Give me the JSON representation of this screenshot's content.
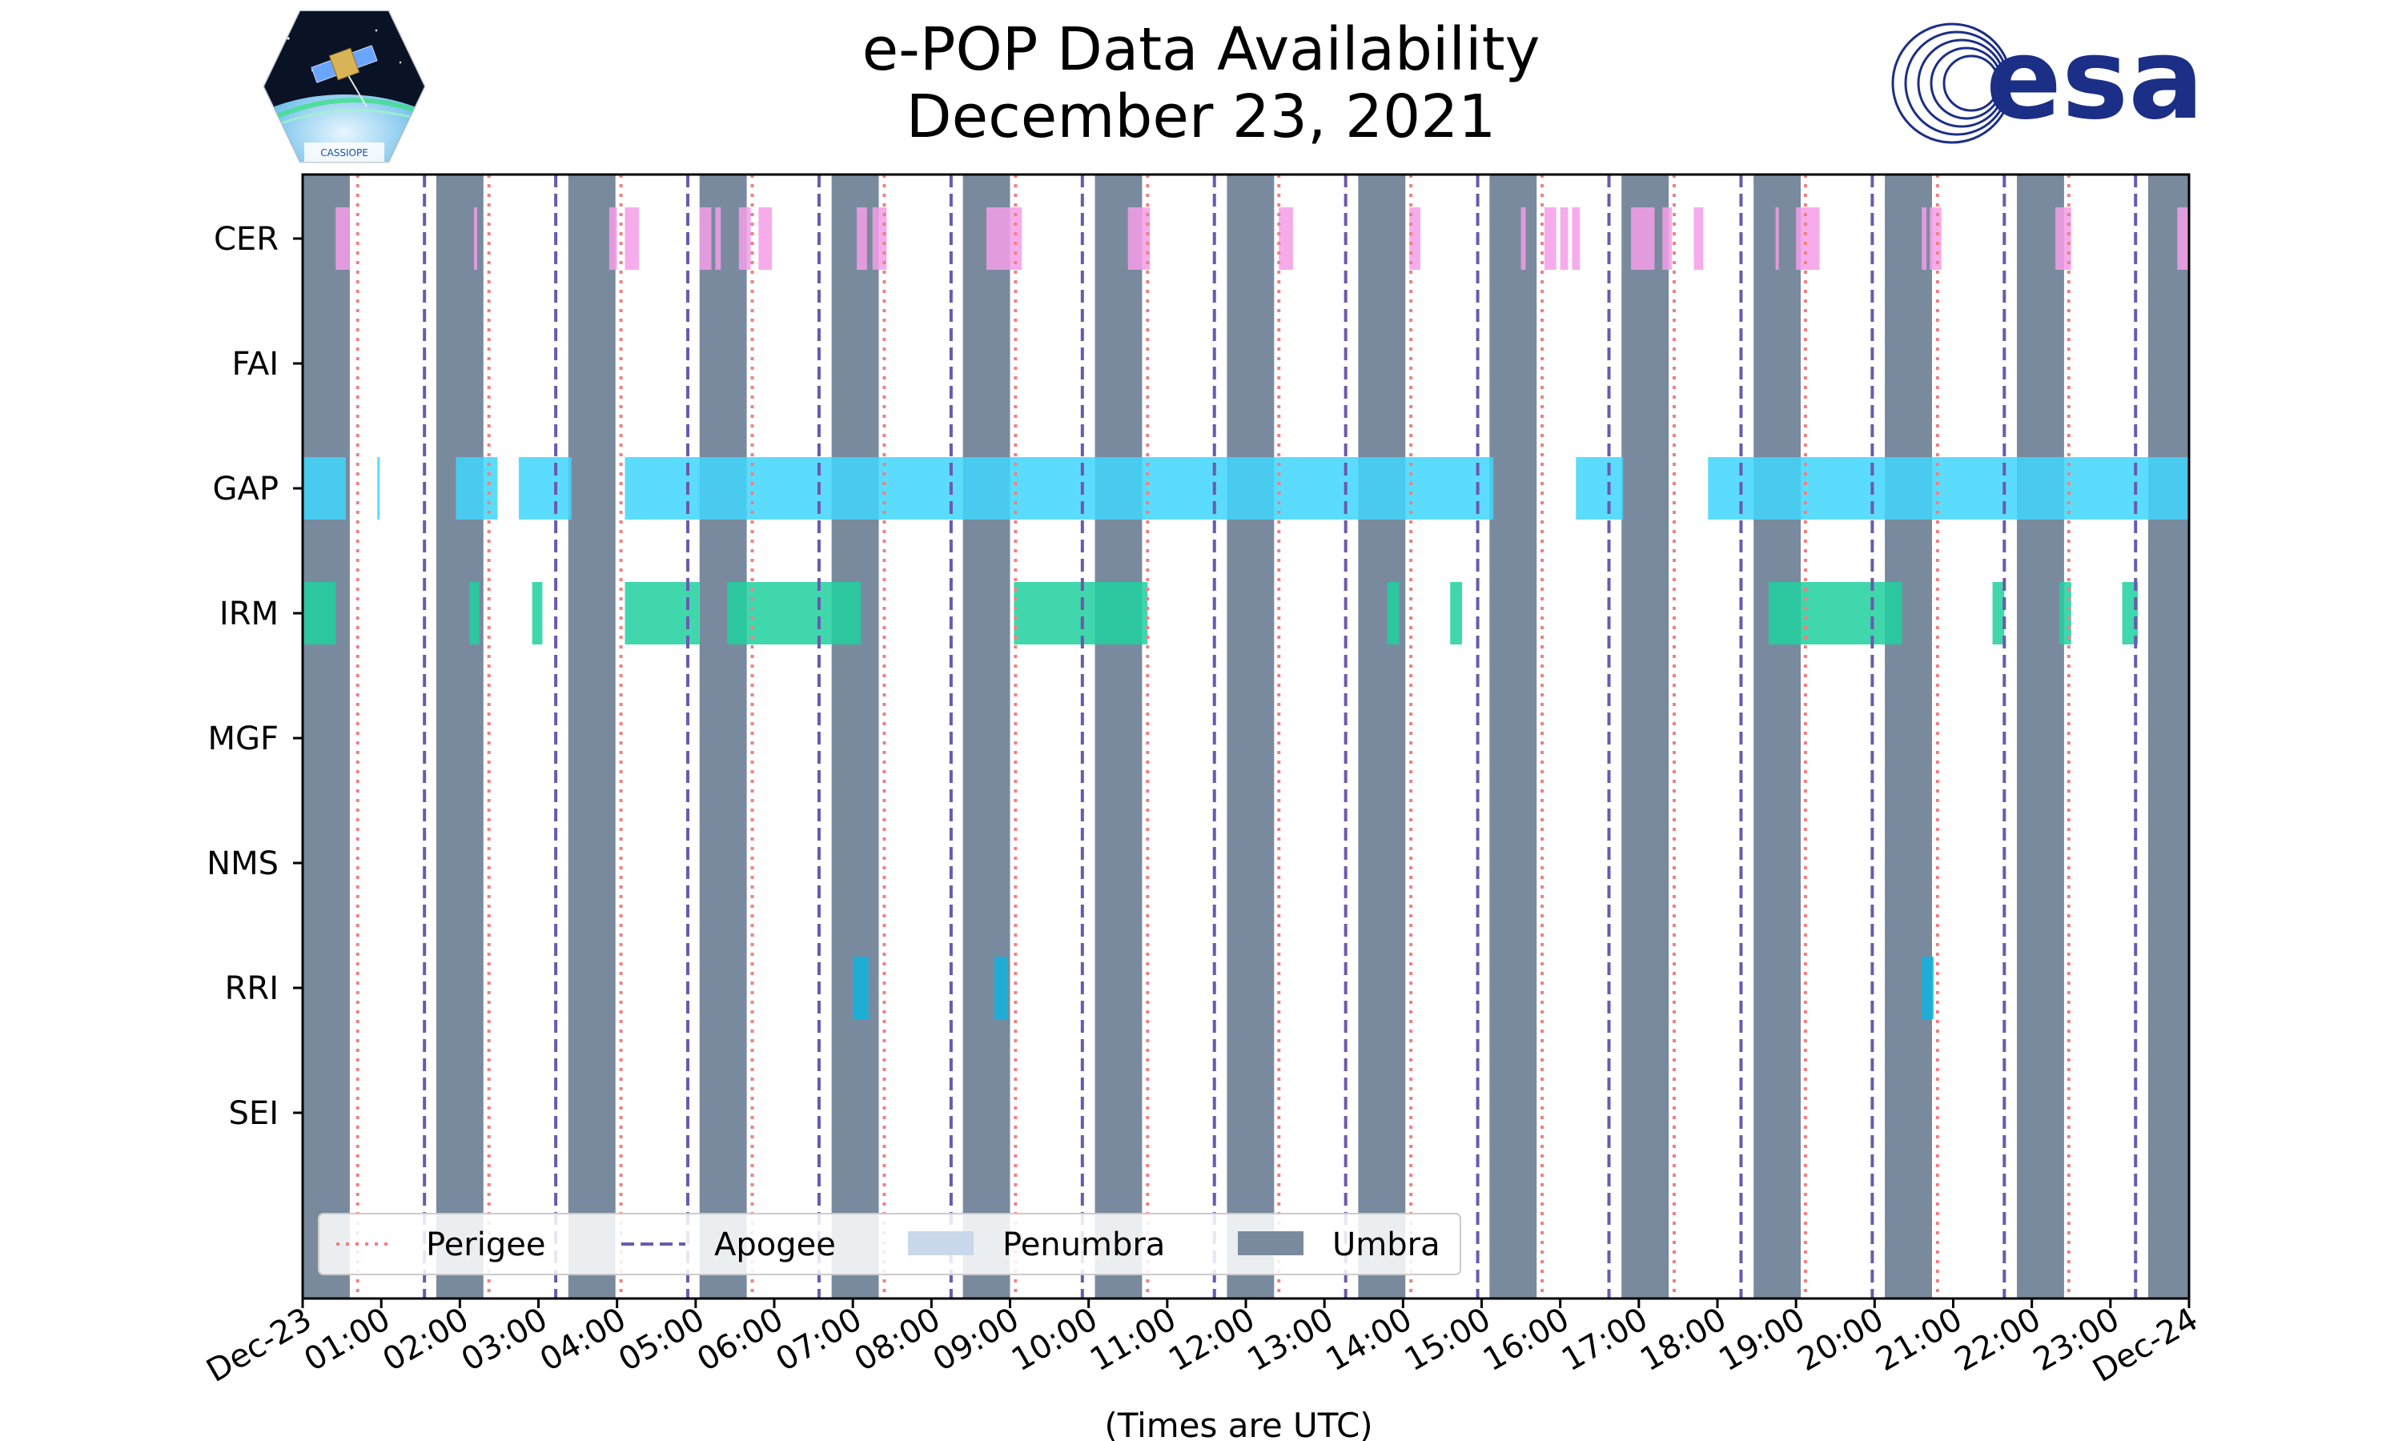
{
  "title_line1": "e-POP Data Availability",
  "title_line2": "December 23, 2021",
  "logo_left_text": "CASSIOPE",
  "logo_right_text": "esa",
  "chart_data": {
    "type": "timeline",
    "title": "e-POP Data Availability December 23, 2021",
    "xlabel": "(Times are UTC)",
    "x_unit": "hours UTC",
    "xlim": [
      0,
      24
    ],
    "tick_labels": [
      "Dec-23",
      "01:00",
      "02:00",
      "03:00",
      "04:00",
      "05:00",
      "06:00",
      "07:00",
      "08:00",
      "09:00",
      "10:00",
      "11:00",
      "12:00",
      "13:00",
      "14:00",
      "15:00",
      "16:00",
      "17:00",
      "18:00",
      "19:00",
      "20:00",
      "21:00",
      "22:00",
      "23:00",
      "Dec-24"
    ],
    "instruments": [
      "CER",
      "FAI",
      "GAP",
      "IRM",
      "MGF",
      "NMS",
      "RRI",
      "SEI"
    ],
    "colors": {
      "CER": "#f59ee8",
      "GAP": "#3fd6fb",
      "IRM": "#1fd09f",
      "RRI": "#10b3de",
      "perigee": "#f08080",
      "apogee": "#6a5aad",
      "penumbra": "#c9d8ea",
      "umbra": "#7a8a9e"
    },
    "umbra": [
      [
        0,
        0.6
      ],
      [
        1.7,
        2.3
      ],
      [
        3.38,
        3.98
      ],
      [
        5.05,
        5.65
      ],
      [
        6.73,
        7.33
      ],
      [
        8.4,
        9.0
      ],
      [
        10.08,
        10.68
      ],
      [
        11.76,
        12.36
      ],
      [
        13.43,
        14.03
      ],
      [
        15.1,
        15.7
      ],
      [
        16.78,
        17.38
      ],
      [
        18.46,
        19.06
      ],
      [
        20.13,
        20.73
      ],
      [
        21.81,
        22.41
      ],
      [
        23.48,
        24.0
      ]
    ],
    "perigee": [
      0.7,
      2.37,
      4.05,
      5.72,
      7.4,
      9.07,
      10.75,
      12.42,
      14.1,
      15.77,
      17.45,
      19.12,
      20.8,
      22.47
    ],
    "apogee": [
      1.55,
      3.22,
      4.9,
      6.57,
      8.25,
      9.92,
      11.6,
      13.27,
      14.95,
      16.62,
      18.3,
      19.97,
      21.65,
      23.32
    ],
    "availability": {
      "CER": [
        [
          0.42,
          0.6
        ],
        [
          2.18,
          2.22
        ],
        [
          3.9,
          4.0
        ],
        [
          4.1,
          4.28
        ],
        [
          5.05,
          5.2
        ],
        [
          5.25,
          5.32
        ],
        [
          5.55,
          5.7
        ],
        [
          5.8,
          5.97
        ],
        [
          7.05,
          7.18
        ],
        [
          7.25,
          7.43
        ],
        [
          8.7,
          9.15
        ],
        [
          10.5,
          10.78
        ],
        [
          12.42,
          12.6
        ],
        [
          14.08,
          14.22
        ],
        [
          15.5,
          15.56
        ],
        [
          15.8,
          15.95
        ],
        [
          16.0,
          16.1
        ],
        [
          16.15,
          16.25
        ],
        [
          16.9,
          17.2
        ],
        [
          17.3,
          17.42
        ],
        [
          17.7,
          17.82
        ],
        [
          18.74,
          18.78
        ],
        [
          19.0,
          19.3
        ],
        [
          20.6,
          20.66
        ],
        [
          20.7,
          20.85
        ],
        [
          22.3,
          22.5
        ],
        [
          23.85,
          24.0
        ]
      ],
      "FAI": [],
      "GAP": [
        [
          0,
          0.55
        ],
        [
          0.95,
          0.98
        ],
        [
          1.95,
          2.48
        ],
        [
          2.75,
          3.42
        ],
        [
          4.1,
          15.15
        ],
        [
          16.2,
          16.8
        ],
        [
          17.88,
          24.0
        ]
      ],
      "IRM": [
        [
          0,
          0.42
        ],
        [
          2.12,
          2.25
        ],
        [
          2.92,
          3.05
        ],
        [
          4.1,
          5.05
        ],
        [
          5.4,
          7.1
        ],
        [
          9.05,
          10.75
        ],
        [
          13.8,
          13.95
        ],
        [
          14.6,
          14.75
        ],
        [
          18.65,
          20.35
        ],
        [
          21.5,
          21.65
        ],
        [
          22.35,
          22.5
        ],
        [
          23.15,
          23.35
        ]
      ],
      "MGF": [],
      "NMS": [],
      "RRI": [
        [
          7.0,
          7.2
        ],
        [
          8.8,
          8.97
        ],
        [
          20.6,
          20.75
        ]
      ],
      "SEI": []
    },
    "legend": {
      "position": "lower-left",
      "entries": [
        "Perigee",
        "Apogee",
        "Penumbra",
        "Umbra"
      ]
    }
  }
}
